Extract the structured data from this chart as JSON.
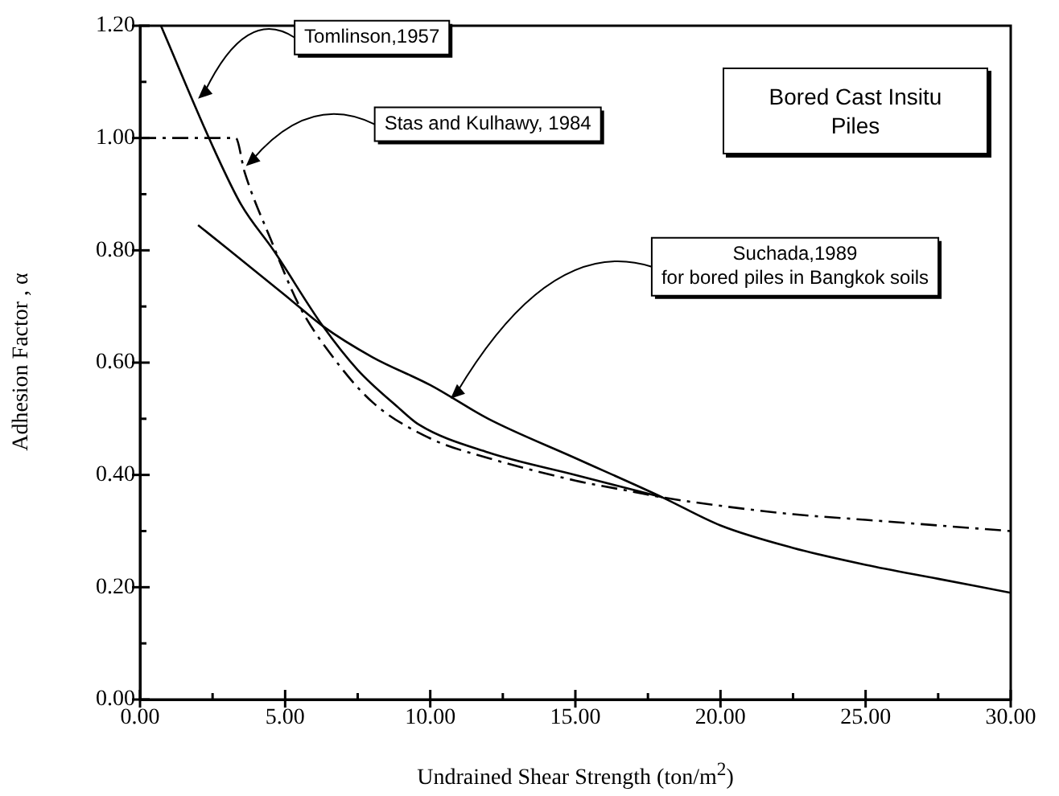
{
  "chart_data": {
    "type": "line",
    "title": "Bored Cast Insitu Piles",
    "xlabel": "Undrained Shear Strength   (ton/m$^{2}$)",
    "ylabel": "Adhesion Factor ,  α",
    "xlim": [
      0,
      30
    ],
    "ylim": [
      0,
      1.2
    ],
    "xticks": [
      {
        "value": 0,
        "label": "0.00"
      },
      {
        "value": 2.5,
        "label": null
      },
      {
        "value": 5,
        "label": "5.00"
      },
      {
        "value": 7.5,
        "label": null
      },
      {
        "value": 10,
        "label": "10.00"
      },
      {
        "value": 12.5,
        "label": null
      },
      {
        "value": 15,
        "label": "15.00"
      },
      {
        "value": 17.5,
        "label": null
      },
      {
        "value": 20,
        "label": "20.00"
      },
      {
        "value": 22.5,
        "label": null
      },
      {
        "value": 25,
        "label": "25.00"
      },
      {
        "value": 27.5,
        "label": null
      },
      {
        "value": 30,
        "label": "30.00"
      }
    ],
    "yticks": [
      {
        "value": 0,
        "label": "0.00"
      },
      {
        "value": 0.1,
        "label": null
      },
      {
        "value": 0.2,
        "label": "0.20"
      },
      {
        "value": 0.3,
        "label": null
      },
      {
        "value": 0.4,
        "label": "0.40"
      },
      {
        "value": 0.5,
        "label": null
      },
      {
        "value": 0.6,
        "label": "0.60"
      },
      {
        "value": 0.7,
        "label": null
      },
      {
        "value": 0.8,
        "label": "0.80"
      },
      {
        "value": 0.9,
        "label": null
      },
      {
        "value": 1.0,
        "label": "1.00"
      },
      {
        "value": 1.1,
        "label": null
      },
      {
        "value": 1.2,
        "label": "1.20"
      }
    ],
    "grid": false,
    "legend": false,
    "marker": "none",
    "series": [
      {
        "color": "#000000",
        "line_style": "solid",
        "x": [
          0.72,
          2.55,
          3.5,
          4.6,
          6.3,
          7.5,
          8.9,
          9.6,
          12,
          15,
          18
        ],
        "values": [
          1.2,
          0.98,
          0.88,
          0.8,
          0.665,
          0.587,
          0.52,
          0.49,
          0.44,
          0.4,
          0.36
        ]
      },
      {
        "color": "#000000",
        "line_style": "dashdot",
        "x": [
          0,
          3.3,
          3.6,
          4.5,
          5.5,
          6.5,
          8,
          10,
          12,
          15,
          17,
          18,
          20,
          22.5,
          25,
          27.5,
          30
        ],
        "values": [
          1.0,
          1.0,
          0.94,
          0.82,
          0.7,
          0.62,
          0.53,
          0.465,
          0.43,
          0.39,
          0.37,
          0.36,
          0.345,
          0.33,
          0.32,
          0.31,
          0.3
        ]
      },
      {
        "color": "#000000",
        "line_style": "solid",
        "x": [
          2,
          5,
          6.3,
          8,
          10,
          12,
          15,
          18,
          20,
          22.5,
          25,
          27.5,
          30
        ],
        "values": [
          0.845,
          0.72,
          0.665,
          0.61,
          0.56,
          0.5,
          0.43,
          0.36,
          0.31,
          0.27,
          0.24,
          0.215,
          0.19
        ]
      }
    ],
    "annotations": [
      {
        "text": "Tomlinson,1957",
        "x": 2.0,
        "y": 1.07
      },
      {
        "text": "Stas and Kulhawy, 1984",
        "x": 3.65,
        "y": 0.95
      },
      {
        "text": "Suchada,1989\nfor bored piles in Bangkok soils",
        "x": 10.7,
        "y": 0.536
      }
    ]
  }
}
